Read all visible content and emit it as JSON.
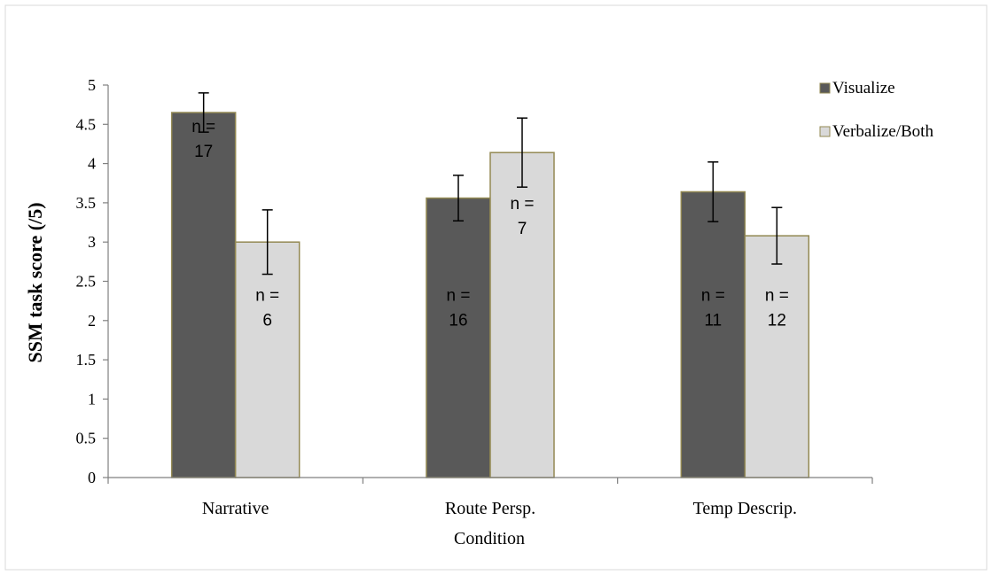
{
  "chart_data": {
    "type": "bar",
    "title": "",
    "xlabel": "Condition",
    "ylabel": "SSM task score (/5)",
    "ylim": [
      0,
      5
    ],
    "yticks": [
      0,
      0.5,
      1,
      1.5,
      2,
      2.5,
      3,
      3.5,
      4,
      4.5,
      5
    ],
    "ytick_labels": [
      "0",
      "0.5",
      "1",
      "1.5",
      "2",
      "2.5",
      "3",
      "3.5",
      "4",
      "4.5",
      "5"
    ],
    "categories": [
      "Narrative",
      "Route Persp.",
      "Temp Descrip."
    ],
    "grid": false,
    "legend_position": "top-right",
    "series": [
      {
        "name": "Visualize",
        "color": "#595959",
        "values": [
          4.65,
          3.56,
          3.64
        ],
        "errors": [
          0.25,
          0.29,
          0.38
        ],
        "n_prefix": [
          "n =",
          "n =",
          "n ="
        ],
        "n_values": [
          "17",
          "16",
          "11"
        ]
      },
      {
        "name": "Verbalize/Both",
        "color": "#d9d9d9",
        "values": [
          3.0,
          4.14,
          3.08
        ],
        "errors": [
          0.41,
          0.44,
          0.36
        ],
        "n_prefix": [
          "n =",
          "n =",
          "n ="
        ],
        "n_values": [
          "6",
          "7",
          "12"
        ]
      }
    ]
  }
}
